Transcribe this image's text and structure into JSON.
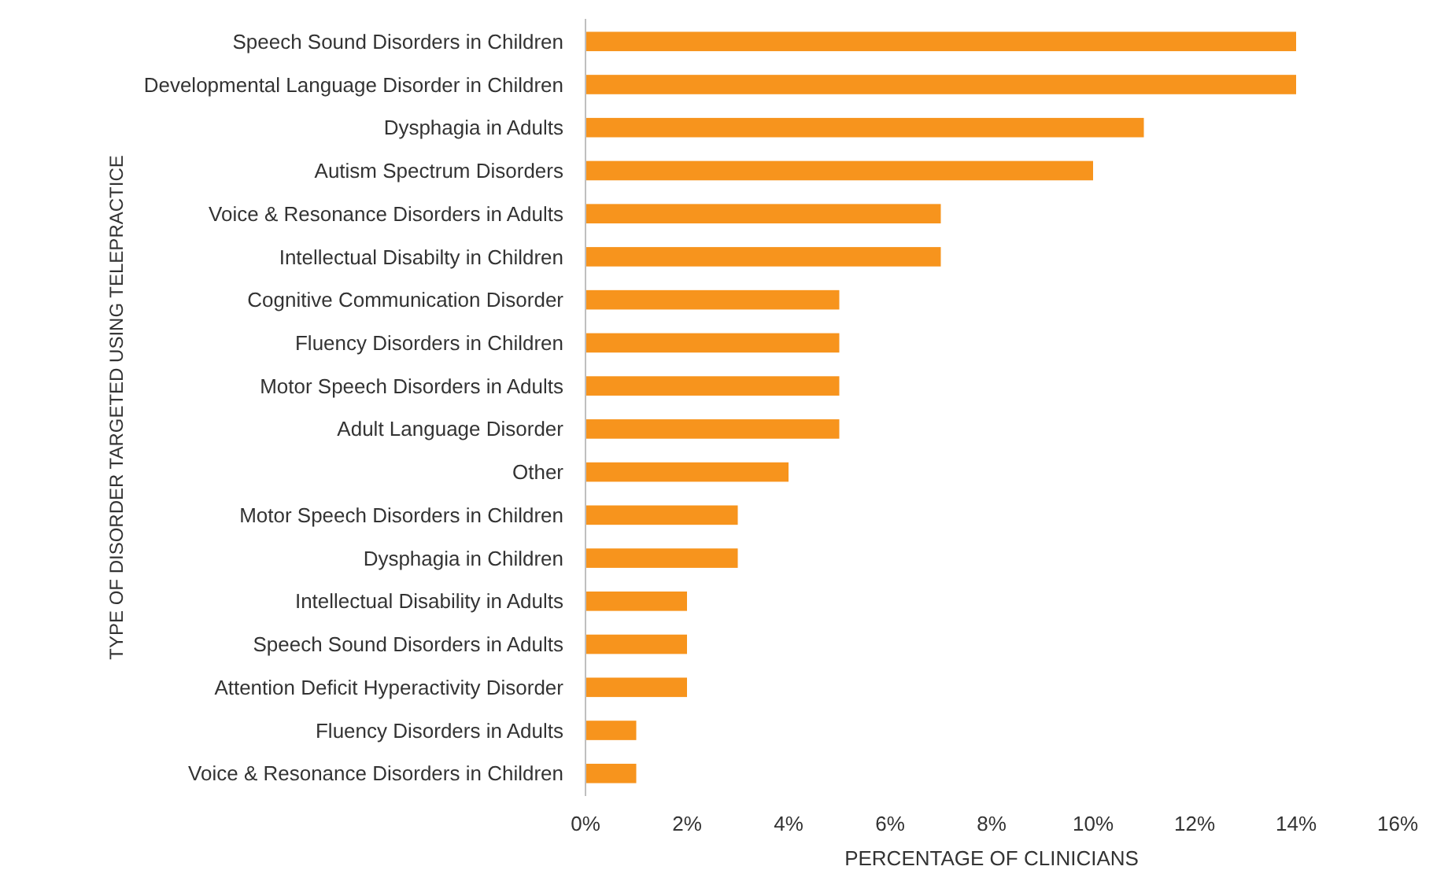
{
  "chart_data": {
    "type": "bar",
    "orientation": "horizontal",
    "xlabel": "PERCENTAGE OF CLINICIANS",
    "ylabel": "TYPE OF DISORDER TARGETED USING TELEPRACTICE",
    "categories": [
      "Speech Sound Disorders in Children",
      "Developmental Language Disorder in Children",
      "Dysphagia in Adults",
      "Autism Spectrum Disorders",
      "Voice & Resonance Disorders in Adults",
      "Intellectual Disabilty in Children",
      "Cognitive Communication Disorder",
      "Fluency Disorders in Children",
      "Motor Speech Disorders in Adults",
      "Adult Language Disorder",
      "Other",
      "Motor Speech Disorders in Children",
      "Dysphagia in Children",
      "Intellectual Disability in Adults",
      "Speech Sound Disorders in Adults",
      "Attention Deficit Hyperactivity Disorder",
      "Fluency Disorders in Adults",
      "Voice & Resonance Disorders in Children"
    ],
    "values": [
      14,
      14,
      11,
      10,
      7,
      7,
      5,
      5,
      5,
      5,
      4,
      3,
      3,
      2,
      2,
      2,
      1,
      1
    ],
    "color": "#f7941d",
    "xlim": [
      0,
      16
    ],
    "xticks": [
      {
        "value": 0,
        "label": "0%"
      },
      {
        "value": 2,
        "label": "2%"
      },
      {
        "value": 4,
        "label": "4%"
      },
      {
        "value": 6,
        "label": "6%"
      },
      {
        "value": 8,
        "label": "8%"
      },
      {
        "value": 10,
        "label": "10%"
      },
      {
        "value": 12,
        "label": "12%"
      },
      {
        "value": 14,
        "label": "14%"
      },
      {
        "value": 16,
        "label": "16%"
      }
    ],
    "grid": false
  }
}
